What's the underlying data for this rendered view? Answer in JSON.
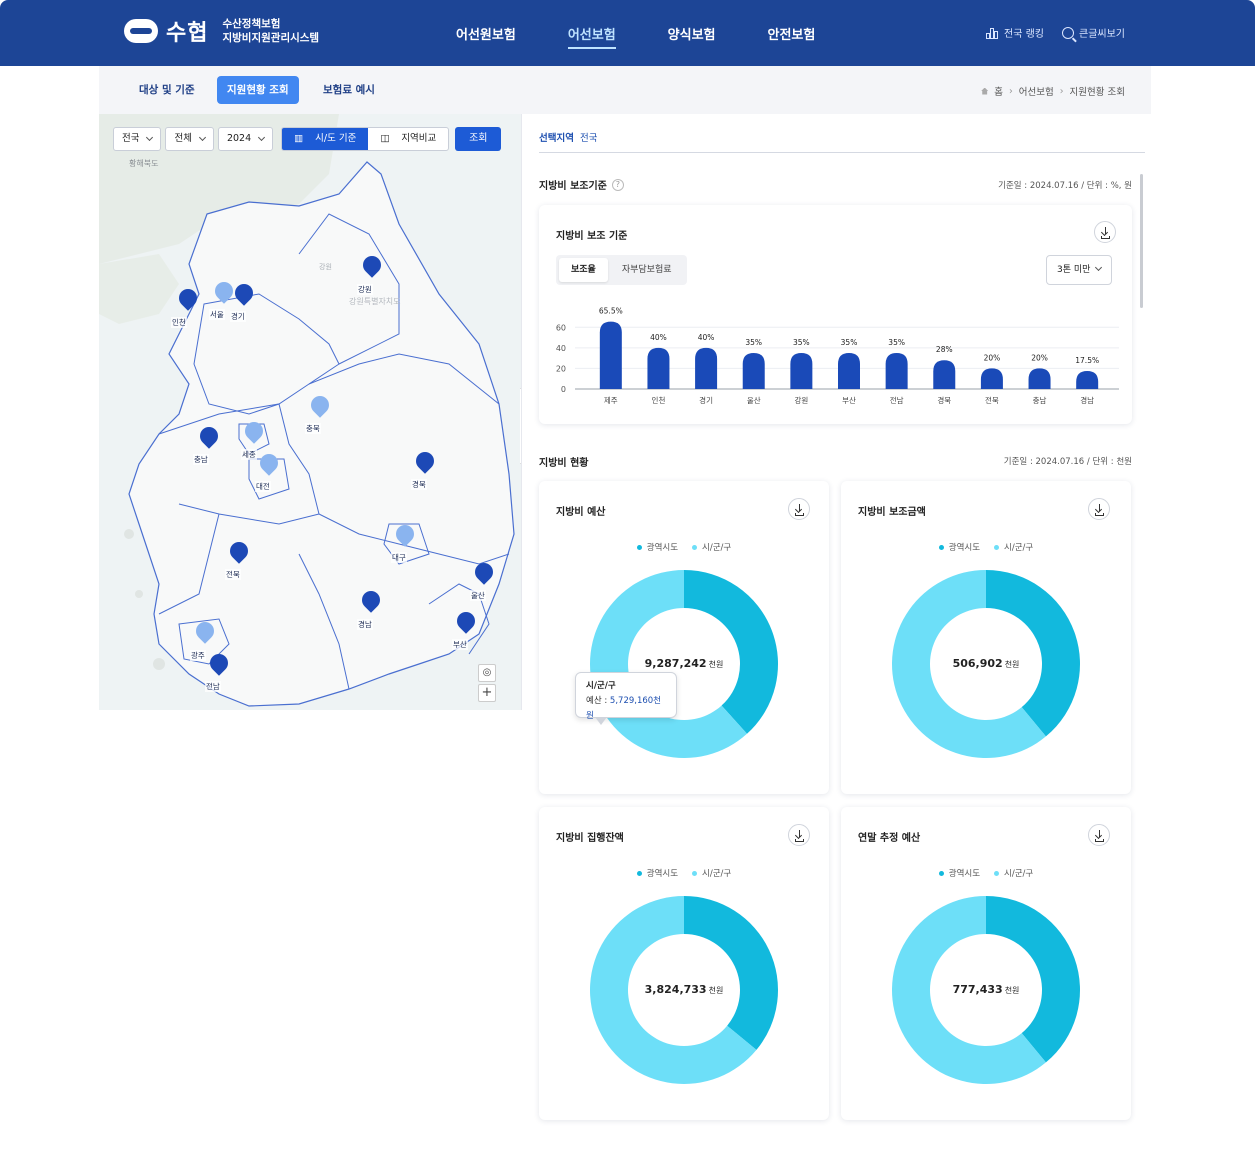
{
  "header": {
    "logo_text": "수협",
    "logo_sub1": "수산정책보험",
    "logo_sub2": "지방비지원관리시스템",
    "nav": [
      {
        "label": "어선원보험",
        "active": false
      },
      {
        "label": "어선보험",
        "active": true
      },
      {
        "label": "양식보험",
        "active": false
      },
      {
        "label": "안전보험",
        "active": false
      }
    ],
    "util": {
      "ranking": "전국 랭킹",
      "bigtext": "큰글씨보기"
    }
  },
  "subnav": {
    "tabs": [
      {
        "label": "대상 및 기준",
        "active": false
      },
      {
        "label": "지원현황 조회",
        "active": true
      },
      {
        "label": "보험료 예시",
        "active": false
      }
    ],
    "breadcrumb": [
      "홈",
      "어선보험",
      "지원현황 조회"
    ]
  },
  "map": {
    "filters": {
      "region": "전국",
      "scope": "전체",
      "year": "2024",
      "mode_sido": "시/도 기준",
      "mode_compare": "지역비교",
      "search": "조회"
    },
    "bg_labels": [
      "황해북도",
      "강원",
      "강원특별자치도"
    ],
    "pins": [
      {
        "name": "인천",
        "tone": "dark"
      },
      {
        "name": "서울",
        "tone": "light"
      },
      {
        "name": "경기",
        "tone": "dark"
      },
      {
        "name": "강원",
        "tone": "dark"
      },
      {
        "name": "충북",
        "tone": "light"
      },
      {
        "name": "충남",
        "tone": "dark"
      },
      {
        "name": "세종",
        "tone": "light"
      },
      {
        "name": "대전",
        "tone": "light"
      },
      {
        "name": "경북",
        "tone": "dark"
      },
      {
        "name": "전북",
        "tone": "dark"
      },
      {
        "name": "대구",
        "tone": "light"
      },
      {
        "name": "울산",
        "tone": "dark"
      },
      {
        "name": "경남",
        "tone": "dark"
      },
      {
        "name": "부산",
        "tone": "dark"
      },
      {
        "name": "광주",
        "tone": "light"
      },
      {
        "name": "전남",
        "tone": "dark"
      }
    ]
  },
  "panel": {
    "selected_label": "선택지역",
    "selected_value": "전국",
    "standard_title": "지방비 보조기준",
    "standard_meta": "기준일 : 2024.07.16 / 단위 : %, 원",
    "status_title": "지방비 현황",
    "status_meta": "기준일 : 2024.07.16 / 단위 : 천원"
  },
  "bar_card": {
    "title": "지방비 보조 기준",
    "toggle": [
      "보조율",
      "자부담보험료"
    ],
    "tonnage": "3톤 미만"
  },
  "chart_data": [
    {
      "type": "bar",
      "title": "지방비 보조 기준",
      "categories": [
        "제주",
        "인천",
        "경기",
        "울산",
        "강원",
        "부산",
        "전남",
        "경북",
        "전북",
        "충남",
        "경남"
      ],
      "values": [
        65.5,
        40,
        40,
        35,
        35,
        35,
        35,
        28,
        20,
        20,
        17.5
      ],
      "value_labels": [
        "65.5%",
        "40%",
        "40%",
        "35%",
        "35%",
        "35%",
        "35%",
        "28%",
        "20%",
        "20%",
        "17.5%"
      ],
      "yticks": [
        "0",
        "20",
        "40",
        "60"
      ],
      "ylim": [
        0,
        70
      ],
      "color": "#1a4ab8"
    },
    {
      "type": "pie",
      "title": "지방비 예산",
      "center_value": "9,287,242",
      "unit": "천원",
      "series": [
        {
          "name": "광역시도",
          "value": 3558082
        },
        {
          "name": "시/군/구",
          "value": 5729160
        }
      ],
      "tooltip": {
        "name": "시/군/구",
        "label": "예산",
        "value": "5,729,160천원"
      }
    },
    {
      "type": "pie",
      "title": "지방비 보조금액",
      "center_value": "506,902",
      "unit": "천원",
      "series": [
        {
          "name": "광역시도",
          "value": 0.39
        },
        {
          "name": "시/군/구",
          "value": 0.61
        }
      ]
    },
    {
      "type": "pie",
      "title": "지방비 집행잔액",
      "center_value": "3,824,733",
      "unit": "천원",
      "series": [
        {
          "name": "광역시도",
          "value": 0.36
        },
        {
          "name": "시/군/구",
          "value": 0.64
        }
      ]
    },
    {
      "type": "pie",
      "title": "연말 추정 예산",
      "center_value": "777,433",
      "unit": "천원",
      "series": [
        {
          "name": "광역시도",
          "value": 0.39
        },
        {
          "name": "시/군/구",
          "value": 0.61
        }
      ]
    }
  ],
  "colors": {
    "primary": "#1d4596",
    "accent": "#4187f1",
    "bar": "#1a4ab8",
    "donut_dark": "#12b9dd",
    "donut_light": "#6ddff8",
    "pin_dark": "#1d49b6",
    "pin_light": "#8ab4ef"
  }
}
